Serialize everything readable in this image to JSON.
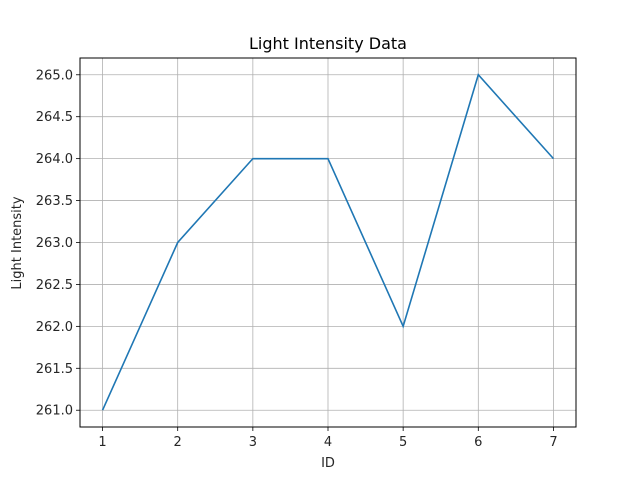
{
  "chart_data": {
    "type": "line",
    "title": "Light Intensity Data",
    "xlabel": "ID",
    "ylabel": "Light Intensity",
    "x": [
      1,
      2,
      3,
      4,
      5,
      6,
      7
    ],
    "series": [
      {
        "values": [
          261.0,
          263.0,
          264.0,
          264.0,
          262.0,
          265.0,
          264.0
        ],
        "color": "#1f77b4"
      }
    ],
    "xticks": [
      "1",
      "2",
      "3",
      "4",
      "5",
      "6",
      "7"
    ],
    "yticks": [
      "261.0",
      "261.5",
      "262.0",
      "262.5",
      "263.0",
      "263.5",
      "264.0",
      "264.5",
      "265.0"
    ],
    "xlim": [
      0.7,
      7.3
    ],
    "ylim": [
      260.8,
      265.2
    ],
    "grid": true,
    "grid_color": "#b0b0b0",
    "axis_color": "#000000"
  }
}
